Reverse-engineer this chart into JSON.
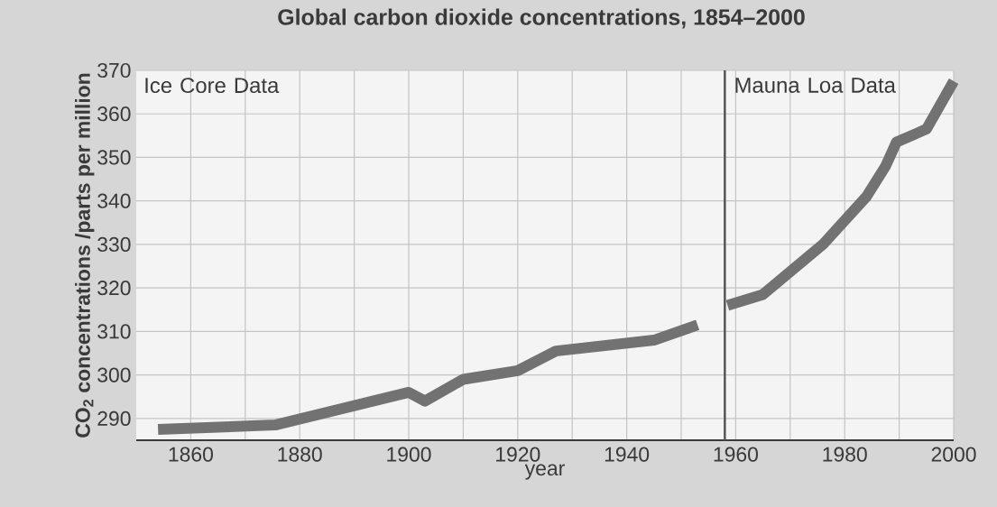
{
  "chart_data": {
    "type": "line",
    "title": "Global carbon dioxide concentrations, 1854–2000",
    "xlabel": "year",
    "ylabel": "CO$_{2}$ concentrations /parts per million",
    "series": [
      {
        "color": "#727272",
        "x": [
          1854,
          1875.5,
          1900,
          1903,
          1910,
          1920,
          1927,
          1945,
          1953
        ],
        "values": [
          287.5,
          288.5,
          296,
          294,
          299,
          301,
          305.5,
          308,
          311.5
        ]
      },
      {
        "color": "#727272",
        "x": [
          1958.5,
          1965,
          1976,
          1984,
          1987.5,
          1989.5,
          1995,
          2000
        ],
        "values": [
          316,
          318.5,
          330,
          341,
          348,
          353.5,
          356.5,
          367.5
        ]
      }
    ],
    "xlim": [
      1850,
      2000
    ],
    "ylim": [
      285,
      370
    ],
    "xticks": [
      1860,
      {
        "value": 1870,
        "label": null
      },
      1880,
      {
        "value": 1890,
        "label": null
      },
      1900,
      {
        "value": 1910,
        "label": null
      },
      1920,
      {
        "value": 1930,
        "label": null
      },
      1940,
      {
        "value": 1950,
        "label": null
      },
      1960,
      {
        "value": 1970,
        "label": null
      },
      1980,
      {
        "value": 1990,
        "label": null
      },
      2000
    ],
    "yticks": [
      290,
      300,
      310,
      320,
      330,
      340,
      350,
      360,
      370
    ],
    "grid": true,
    "line_style": "solid",
    "marker": "none",
    "ref_lines": [
      {
        "axis": "x",
        "value": 1958,
        "color": "#555555"
      }
    ],
    "annotations": [
      "Ice Core Data",
      "Mauna Loa Data"
    ]
  }
}
